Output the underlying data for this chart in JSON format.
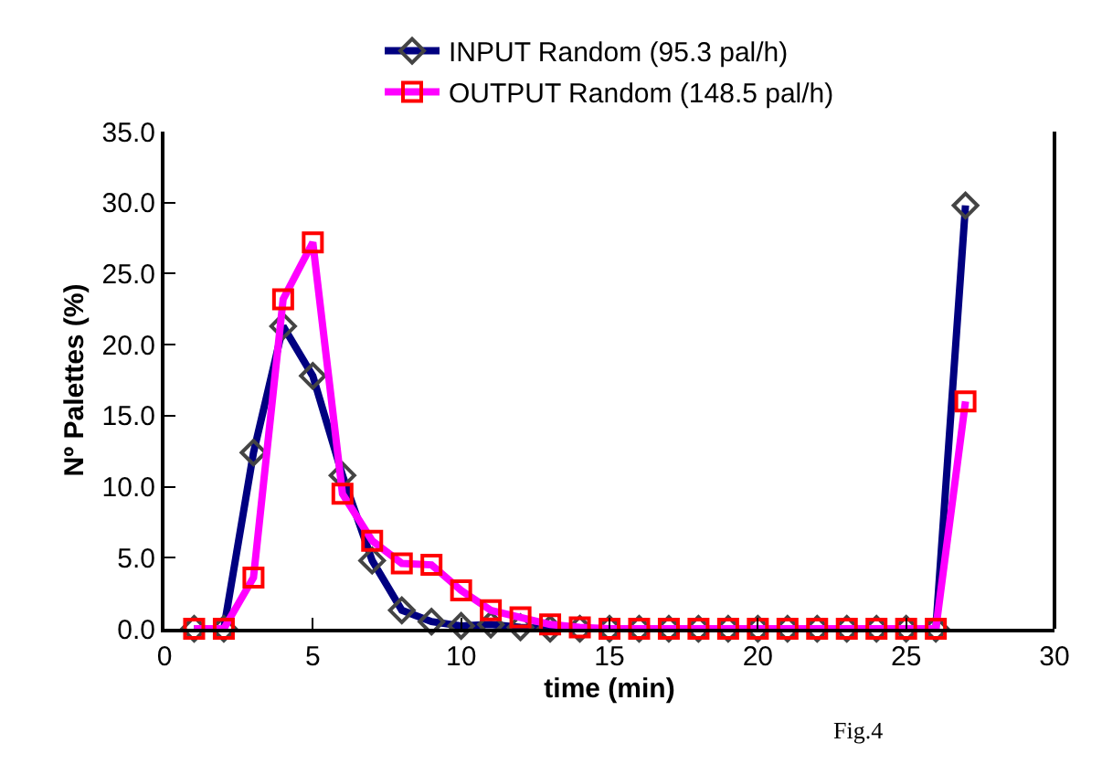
{
  "chart_data": {
    "type": "line",
    "xlabel": "time (min)",
    "ylabel": "Nº Palettes (%)",
    "x": [
      1,
      2,
      3,
      4,
      5,
      6,
      7,
      8,
      9,
      10,
      11,
      12,
      13,
      14,
      15,
      16,
      17,
      18,
      19,
      20,
      21,
      22,
      23,
      24,
      25,
      26,
      27
    ],
    "series": [
      {
        "name": "INPUT Random (95.3 pal/h)",
        "color": "#000080",
        "marker": "diamond",
        "values": [
          0,
          0,
          12.4,
          21.3,
          17.8,
          10.8,
          4.8,
          1.3,
          0.5,
          0.2,
          0.3,
          0.1,
          0,
          0,
          0,
          0,
          0,
          0,
          0,
          0,
          0,
          0,
          0,
          0,
          0,
          0,
          29.8
        ]
      },
      {
        "name": "OUTPUT Random (148.5 pal/h)",
        "color": "#ff00ff",
        "marker": "square",
        "values": [
          0,
          0,
          3.6,
          23.2,
          27.2,
          9.5,
          6.2,
          4.6,
          4.5,
          2.7,
          1.3,
          0.8,
          0.3,
          0.1,
          0,
          0,
          0,
          0,
          0,
          0,
          0,
          0,
          0,
          0,
          0,
          0,
          16.0
        ]
      }
    ],
    "xlim": [
      0,
      30
    ],
    "xticks": [
      0,
      5,
      10,
      15,
      20,
      25,
      30
    ],
    "ylim": [
      0,
      35
    ],
    "yticks": [
      {
        "value": 0,
        "label": "0.0"
      },
      {
        "value": 5,
        "label": "5.0"
      },
      {
        "value": 10,
        "label": "10.0"
      },
      {
        "value": 15,
        "label": "15.0"
      },
      {
        "value": 20,
        "label": "20.0"
      },
      {
        "value": 25,
        "label": "25.0"
      },
      {
        "value": 30,
        "label": "30.0"
      },
      {
        "value": 35,
        "label": "35.0"
      }
    ],
    "grid": false,
    "legend": "top",
    "line_style": "solid",
    "annotations": [
      "Fig.4"
    ]
  }
}
